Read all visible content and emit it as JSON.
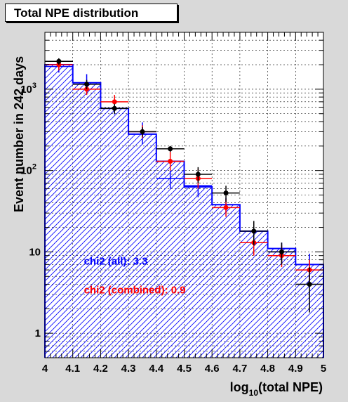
{
  "chart_data": {
    "type": "histogram",
    "title": "Total NPE distribution",
    "xlabel_main": "log",
    "xlabel_sub": "10",
    "xlabel_rest": "(total NPE)",
    "ylabel": "Event number in 242 days",
    "xlim": [
      4.0,
      5.0
    ],
    "ylim": [
      0.5,
      5000
    ],
    "y_scale": "log",
    "grid": true,
    "x_ticks": [
      "4",
      "4.1",
      "4.2",
      "4.3",
      "4.4",
      "4.5",
      "4.6",
      "4.7",
      "4.8",
      "4.9",
      "5"
    ],
    "y_ticks": [
      {
        "value": 1,
        "base": "1",
        "exp": ""
      },
      {
        "value": 10,
        "base": "10",
        "exp": ""
      },
      {
        "value": 100,
        "base": "10",
        "exp": "2"
      },
      {
        "value": 1000,
        "base": "10",
        "exp": "3"
      }
    ],
    "bin_edges": [
      4.0,
      4.1,
      4.2,
      4.3,
      4.4,
      4.5,
      4.6,
      4.7,
      4.8,
      4.9,
      5.0
    ],
    "histogram": {
      "color": "#0000ff",
      "values": [
        2000,
        1200,
        580,
        280,
        130,
        63,
        38,
        18,
        11,
        7
      ]
    },
    "series": [
      {
        "color": "#0000ff",
        "x": [
          4.05,
          4.15,
          4.25,
          4.35,
          4.45,
          4.55,
          4.65,
          4.75,
          4.85,
          4.95
        ],
        "y": [
          1900,
          1200,
          580,
          300,
          80,
          65,
          38,
          18,
          10,
          7
        ],
        "err_lo": [
          300,
          330,
          90,
          90,
          20,
          18,
          8,
          5,
          3,
          2.5
        ],
        "err_hi": [
          300,
          330,
          90,
          90,
          20,
          18,
          8,
          5,
          3,
          2.5
        ]
      },
      {
        "color": "#ff0000",
        "x": [
          4.05,
          4.15,
          4.25,
          4.35,
          4.45,
          4.55,
          4.65,
          4.75,
          4.85,
          4.95
        ],
        "y": [
          2000,
          1000,
          700,
          300,
          130,
          80,
          35,
          13,
          9,
          6
        ],
        "err_lo": [
          300,
          150,
          100,
          50,
          30,
          20,
          8,
          4,
          2.5,
          2
        ],
        "err_hi": [
          300,
          150,
          150,
          60,
          40,
          25,
          10,
          5,
          3,
          2
        ]
      },
      {
        "color": "#000000",
        "x": [
          4.05,
          4.15,
          4.25,
          4.35,
          4.45,
          4.55,
          4.65,
          4.75,
          4.85,
          4.95
        ],
        "y": [
          2200,
          1150,
          580,
          300,
          185,
          90,
          53,
          18,
          10,
          4
        ],
        "err_lo": [
          200,
          150,
          80,
          40,
          15,
          20,
          12,
          6,
          3,
          2.2
        ],
        "err_hi": [
          200,
          150,
          80,
          40,
          15,
          20,
          12,
          6,
          3,
          2.5
        ]
      }
    ],
    "annotations": [
      {
        "text": "chi2 (all): 3.3",
        "color": "#0000ff",
        "x": 4.14,
        "y": 7.0
      },
      {
        "text": "chi2 (combined): 0.9",
        "color": "#ff0000",
        "x": 4.14,
        "y": 3.1
      }
    ]
  }
}
